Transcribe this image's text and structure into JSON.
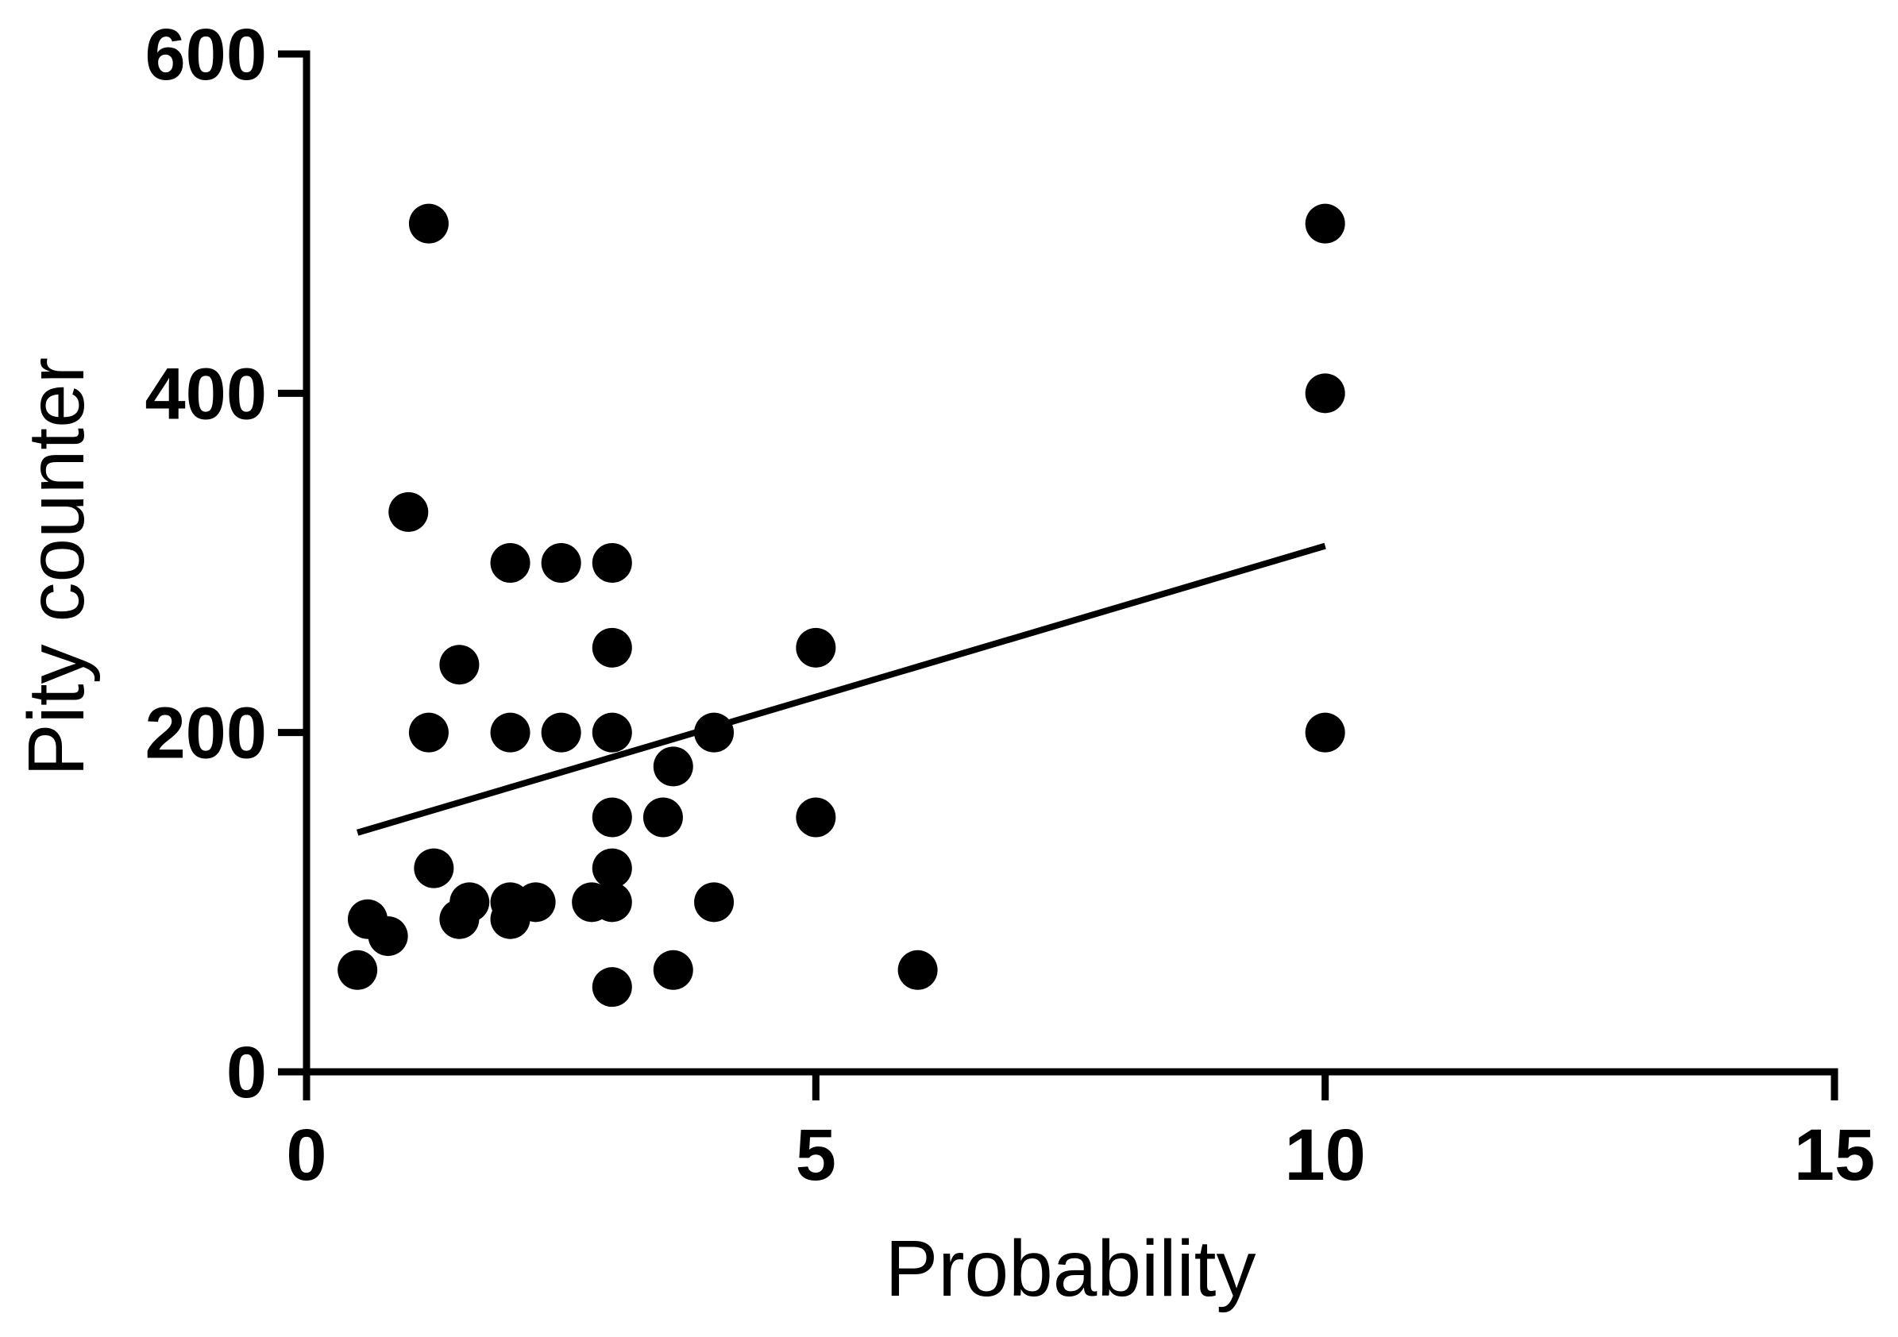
{
  "chart_data": {
    "type": "scatter",
    "xlabel": "Probability",
    "ylabel": "Pity counter",
    "xlim": [
      0,
      15
    ],
    "ylim": [
      0,
      600
    ],
    "x_ticks": [
      0,
      5,
      10,
      15
    ],
    "y_ticks": [
      0,
      200,
      400,
      600
    ],
    "grid": false,
    "colors": {
      "points": "#000000",
      "axes": "#000000",
      "fit_line": "#000000"
    },
    "points": [
      {
        "x": 0.5,
        "y": 60
      },
      {
        "x": 0.6,
        "y": 90
      },
      {
        "x": 0.8,
        "y": 80
      },
      {
        "x": 1.0,
        "y": 330
      },
      {
        "x": 1.2,
        "y": 500
      },
      {
        "x": 1.2,
        "y": 200
      },
      {
        "x": 1.25,
        "y": 120
      },
      {
        "x": 1.5,
        "y": 240
      },
      {
        "x": 1.5,
        "y": 90
      },
      {
        "x": 1.6,
        "y": 100
      },
      {
        "x": 2.0,
        "y": 300
      },
      {
        "x": 2.0,
        "y": 200
      },
      {
        "x": 2.0,
        "y": 100
      },
      {
        "x": 2.0,
        "y": 90
      },
      {
        "x": 2.25,
        "y": 100
      },
      {
        "x": 2.5,
        "y": 300
      },
      {
        "x": 2.5,
        "y": 200
      },
      {
        "x": 2.8,
        "y": 100
      },
      {
        "x": 3.0,
        "y": 300
      },
      {
        "x": 3.0,
        "y": 250
      },
      {
        "x": 3.0,
        "y": 200
      },
      {
        "x": 3.0,
        "y": 150
      },
      {
        "x": 3.0,
        "y": 120
      },
      {
        "x": 3.0,
        "y": 100
      },
      {
        "x": 3.0,
        "y": 50
      },
      {
        "x": 3.5,
        "y": 150
      },
      {
        "x": 3.6,
        "y": 180
      },
      {
        "x": 3.6,
        "y": 60
      },
      {
        "x": 4.0,
        "y": 200
      },
      {
        "x": 4.0,
        "y": 100
      },
      {
        "x": 5.0,
        "y": 250
      },
      {
        "x": 5.0,
        "y": 150
      },
      {
        "x": 6.0,
        "y": 60
      },
      {
        "x": 10.0,
        "y": 500
      },
      {
        "x": 10.0,
        "y": 400
      },
      {
        "x": 10.0,
        "y": 200
      }
    ],
    "regression_line": {
      "x": [
        0.5,
        10.0
      ],
      "y": [
        141,
        310
      ]
    }
  }
}
